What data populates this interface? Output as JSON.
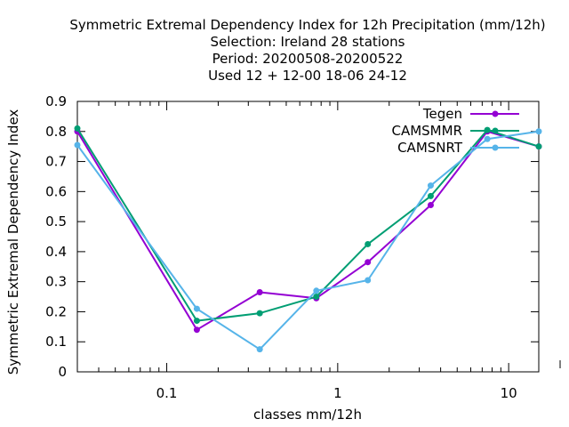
{
  "chart_data": {
    "type": "line",
    "title_lines": [
      "Symmetric Extremal Dependency Index  for 12h Precipitation (mm/12h)",
      "Selection: Ireland      28 stations",
      "Period: 20200508-20200522",
      "Used  12 + 12-00 18-06 24-12"
    ],
    "xlabel": "classes mm/12h",
    "ylabel": "Symmetric Extremal Dependency Index",
    "x_scale": "log",
    "xlim": [
      0.03,
      15
    ],
    "ylim": [
      0,
      0.9
    ],
    "x_ticks": [
      {
        "value": 0.1,
        "label": "0.1"
      },
      {
        "value": 1,
        "label": "1"
      },
      {
        "value": 10,
        "label": "10"
      }
    ],
    "y_ticks": [
      {
        "value": 0,
        "label": "0"
      },
      {
        "value": 0.1,
        "label": "0.1"
      },
      {
        "value": 0.2,
        "label": "0.2"
      },
      {
        "value": 0.3,
        "label": "0.3"
      },
      {
        "value": 0.4,
        "label": "0.4"
      },
      {
        "value": 0.5,
        "label": "0.5"
      },
      {
        "value": 0.6,
        "label": "0.6"
      },
      {
        "value": 0.7,
        "label": "0.7"
      },
      {
        "value": 0.8,
        "label": "0.8"
      },
      {
        "value": 0.9,
        "label": "0.9"
      }
    ],
    "grid": false,
    "legend_position": "top-right",
    "series": [
      {
        "name": "Tegen",
        "color": "#9400d3",
        "marker": "filled-circle",
        "x": [
          0.03,
          0.15,
          0.35,
          0.75,
          1.5,
          3.5,
          7.5,
          15
        ],
        "y": [
          0.8,
          0.14,
          0.265,
          0.245,
          0.365,
          0.555,
          0.8,
          0.75
        ]
      },
      {
        "name": "CAMSMMR",
        "color": "#009e73",
        "marker": "filled-circle",
        "x": [
          0.03,
          0.15,
          0.35,
          0.75,
          1.5,
          3.5,
          7.5,
          15
        ],
        "y": [
          0.81,
          0.17,
          0.195,
          0.25,
          0.425,
          0.585,
          0.805,
          0.75
        ]
      },
      {
        "name": "CAMSNRT",
        "color": "#56b4e9",
        "marker": "filled-circle",
        "x": [
          0.03,
          0.15,
          0.35,
          0.75,
          1.5,
          3.5,
          7.5,
          15
        ],
        "y": [
          0.755,
          0.21,
          0.075,
          0.27,
          0.305,
          0.62,
          0.775,
          0.8
        ]
      }
    ]
  }
}
